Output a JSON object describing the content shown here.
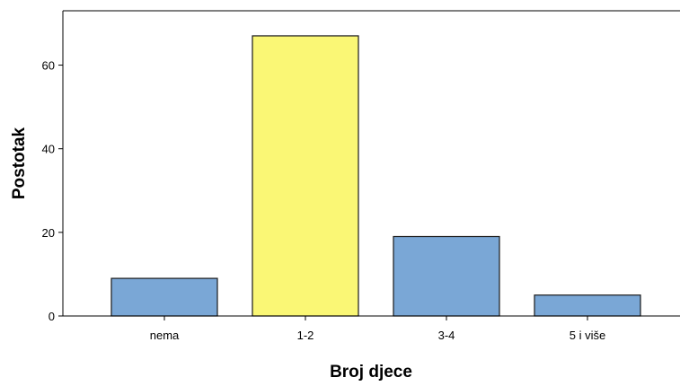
{
  "chart_data": {
    "type": "bar",
    "categories": [
      "nema",
      "1-2",
      "3-4",
      "5 i više"
    ],
    "values": [
      9,
      67,
      19,
      5
    ],
    "xlabel": "Broj djece",
    "ylabel": "Postotak",
    "ylim": [
      0,
      73
    ],
    "yticks": [
      0,
      20,
      40,
      60
    ],
    "grid": false,
    "bar_colors": [
      "#7aa7d6",
      "#faf775",
      "#7aa7d6",
      "#7aa7d6"
    ],
    "bar_edge_color": "#1a1a1a"
  }
}
